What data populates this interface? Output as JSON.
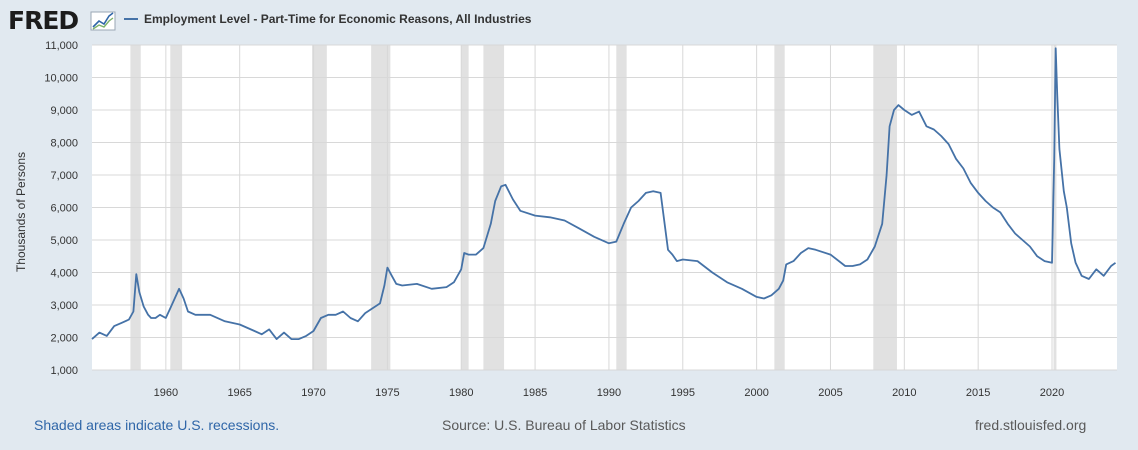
{
  "brand": {
    "logo_text": "FRED"
  },
  "footer": {
    "recessions_note": "Shaded areas indicate U.S. recessions.",
    "source": "Source: U.S. Bureau of Labor Statistics",
    "site": "fred.stlouisfed.org"
  },
  "colors": {
    "line": "#4572a7",
    "recession": "#e1e1e1",
    "page": "#e1e9f0",
    "plot": "#ffffff",
    "logo_line": "#2f66a8"
  },
  "chart_data": {
    "type": "line",
    "title": "",
    "xlabel": "",
    "ylabel": "Thousands of Persons",
    "xlim": [
      1955.0,
      2024.4
    ],
    "ylim": [
      1000,
      11000
    ],
    "grid": true,
    "legend_position": "top-left",
    "x_ticks": [
      1960,
      1965,
      1970,
      1975,
      1980,
      1985,
      1990,
      1995,
      2000,
      2005,
      2010,
      2015,
      2020
    ],
    "x_tick_labels": [
      "1960",
      "1965",
      "1970",
      "1975",
      "1980",
      "1985",
      "1990",
      "1995",
      "2000",
      "2005",
      "2010",
      "2015",
      "2020"
    ],
    "y_ticks": [
      1000,
      2000,
      3000,
      4000,
      5000,
      6000,
      7000,
      8000,
      9000,
      10000,
      11000
    ],
    "y_tick_labels": [
      "1,000",
      "2,000",
      "3,000",
      "4,000",
      "5,000",
      "6,000",
      "7,000",
      "8,000",
      "9,000",
      "10,000",
      "11,000"
    ],
    "recessions": [
      [
        1957.6,
        1958.3
      ],
      [
        1960.3,
        1961.1
      ],
      [
        1969.9,
        1970.9
      ],
      [
        1973.9,
        1975.2
      ],
      [
        1980.0,
        1980.5
      ],
      [
        1981.5,
        1982.9
      ],
      [
        1990.5,
        1991.2
      ],
      [
        2001.2,
        2001.9
      ],
      [
        2007.9,
        2009.5
      ],
      [
        2020.1,
        2020.3
      ]
    ],
    "series": [
      {
        "name": "Employment Level - Part-Time for Economic Reasons, All Industries",
        "x": [
          1955.0,
          1955.5,
          1956.0,
          1956.5,
          1957.0,
          1957.5,
          1957.8,
          1958.0,
          1958.2,
          1958.5,
          1958.8,
          1959.0,
          1959.3,
          1959.6,
          1960.0,
          1960.3,
          1960.6,
          1960.9,
          1961.2,
          1961.5,
          1962.0,
          1963.0,
          1964.0,
          1965.0,
          1966.0,
          1966.5,
          1967.0,
          1967.5,
          1968.0,
          1968.5,
          1969.0,
          1969.5,
          1970.0,
          1970.5,
          1971.0,
          1971.5,
          1972.0,
          1972.5,
          1973.0,
          1973.5,
          1974.0,
          1974.5,
          1974.8,
          1975.0,
          1975.3,
          1975.6,
          1976.0,
          1977.0,
          1978.0,
          1979.0,
          1979.5,
          1980.0,
          1980.2,
          1980.5,
          1981.0,
          1981.5,
          1982.0,
          1982.3,
          1982.7,
          1983.0,
          1983.5,
          1984.0,
          1985.0,
          1986.0,
          1987.0,
          1988.0,
          1989.0,
          1990.0,
          1990.5,
          1991.0,
          1991.5,
          1992.0,
          1992.5,
          1993.0,
          1993.5,
          1994.0,
          1994.3,
          1994.6,
          1995.0,
          1996.0,
          1997.0,
          1998.0,
          1999.0,
          2000.0,
          2000.5,
          2001.0,
          2001.5,
          2001.8,
          2002.0,
          2002.5,
          2003.0,
          2003.5,
          2004.0,
          2005.0,
          2006.0,
          2006.5,
          2007.0,
          2007.5,
          2008.0,
          2008.5,
          2008.8,
          2009.0,
          2009.3,
          2009.6,
          2010.0,
          2010.5,
          2011.0,
          2011.5,
          2012.0,
          2012.5,
          2013.0,
          2013.5,
          2014.0,
          2014.5,
          2015.0,
          2015.5,
          2016.0,
          2016.5,
          2017.0,
          2017.5,
          2018.0,
          2018.5,
          2019.0,
          2019.5,
          2020.0,
          2020.15,
          2020.25,
          2020.35,
          2020.5,
          2020.8,
          2021.0,
          2021.3,
          2021.6,
          2022.0,
          2022.5,
          2023.0,
          2023.5,
          2024.0,
          2024.3
        ],
        "values": [
          1950,
          2150,
          2050,
          2350,
          2450,
          2550,
          2800,
          3950,
          3400,
          2950,
          2700,
          2600,
          2600,
          2700,
          2600,
          2900,
          3200,
          3500,
          3200,
          2800,
          2700,
          2700,
          2500,
          2400,
          2200,
          2100,
          2250,
          1950,
          2150,
          1950,
          1950,
          2050,
          2200,
          2600,
          2700,
          2700,
          2800,
          2600,
          2500,
          2750,
          2900,
          3050,
          3600,
          4150,
          3900,
          3650,
          3600,
          3650,
          3500,
          3550,
          3700,
          4100,
          4600,
          4550,
          4550,
          4750,
          5500,
          6200,
          6650,
          6700,
          6250,
          5900,
          5750,
          5700,
          5600,
          5350,
          5100,
          4900,
          4950,
          5500,
          6000,
          6200,
          6450,
          6500,
          6450,
          4700,
          4550,
          4350,
          4400,
          4350,
          4000,
          3700,
          3500,
          3250,
          3200,
          3300,
          3500,
          3750,
          4250,
          4350,
          4600,
          4750,
          4700,
          4550,
          4200,
          4200,
          4250,
          4400,
          4800,
          5500,
          7000,
          8500,
          9000,
          9150,
          9000,
          8850,
          8950,
          8500,
          8400,
          8200,
          7950,
          7500,
          7200,
          6750,
          6450,
          6200,
          6000,
          5850,
          5500,
          5200,
          5000,
          4800,
          4500,
          4350,
          4300,
          7500,
          10900,
          9500,
          7800,
          6500,
          6000,
          4900,
          4300,
          3900,
          3800,
          4100,
          3900,
          4200,
          4300
        ]
      }
    ]
  }
}
